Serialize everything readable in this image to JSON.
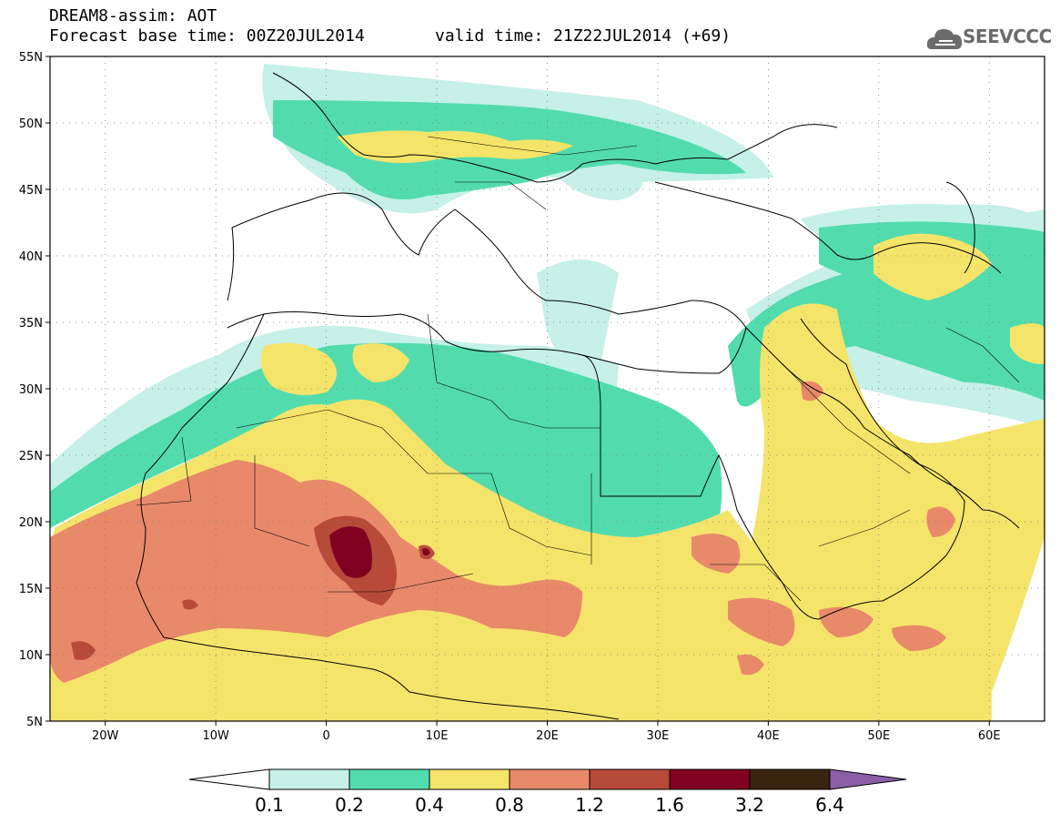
{
  "header": {
    "title_line1": "DREAM8-assim: AOT",
    "title_line2": "Forecast base time: 00Z20JUL2014",
    "valid_time": "valid time: 21Z22JUL2014 (+69)",
    "logo_text": "SEEVCCC"
  },
  "map": {
    "lon_range": [
      -25,
      65
    ],
    "lat_range": [
      5,
      55
    ],
    "lat_labels": [
      "55N",
      "50N",
      "45N",
      "40N",
      "35N",
      "30N",
      "25N",
      "20N",
      "15N",
      "10N",
      "5N"
    ],
    "lon_labels": [
      "20W",
      "10W",
      "0",
      "10E",
      "20E",
      "30E",
      "40E",
      "50E",
      "60E"
    ]
  },
  "colorbar": {
    "labels": [
      "0.1",
      "0.2",
      "0.4",
      "0.8",
      "1.2",
      "1.6",
      "3.2",
      "6.4"
    ],
    "colors": [
      "#ffffff",
      "#c6f0e8",
      "#52dcae",
      "#f5e46a",
      "#e8896a",
      "#b84a3a",
      "#800020",
      "#3a2410",
      "#8a5fa8"
    ]
  },
  "palette": {
    "c1": "#c6f0e8",
    "c2": "#52dcae",
    "c3": "#f5e46a",
    "c4": "#e8896a",
    "c5": "#b84a3a",
    "c6": "#800020"
  }
}
